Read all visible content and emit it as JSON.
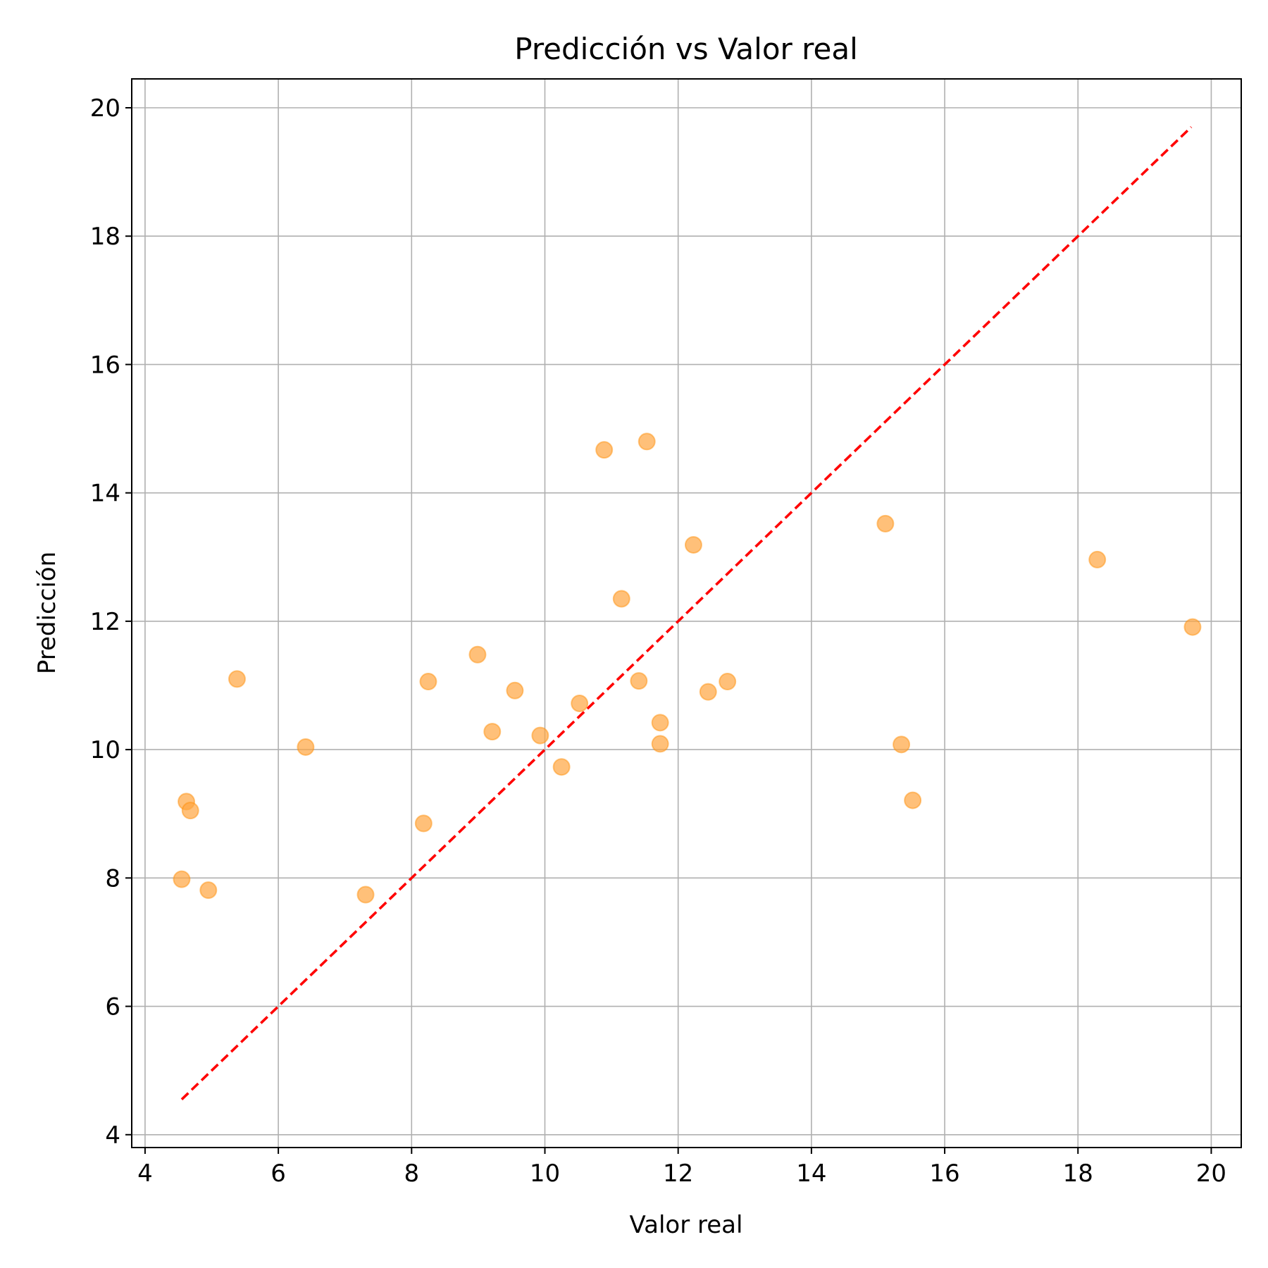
{
  "chart_data": {
    "type": "scatter",
    "title": "Predicción vs Valor real",
    "xlabel": "Valor real",
    "ylabel": "Predicción",
    "xlim": [
      3.8,
      20.45
    ],
    "ylim": [
      3.8,
      20.45
    ],
    "xticks": [
      "4",
      "6",
      "8",
      "10",
      "12",
      "14",
      "16",
      "18",
      "20"
    ],
    "yticks": [
      "4",
      "6",
      "8",
      "10",
      "12",
      "14",
      "16",
      "18",
      "20"
    ],
    "grid": true,
    "point_color": "#ff8c00",
    "reference_line": {
      "x": [
        4.55,
        19.7
      ],
      "y": [
        4.55,
        19.7
      ],
      "color": "#ff0000",
      "style": "dashed"
    },
    "points": [
      {
        "x": 4.55,
        "y": 7.98
      },
      {
        "x": 4.62,
        "y": 9.19
      },
      {
        "x": 4.68,
        "y": 9.05
      },
      {
        "x": 4.95,
        "y": 7.81
      },
      {
        "x": 5.38,
        "y": 11.1
      },
      {
        "x": 6.41,
        "y": 10.04
      },
      {
        "x": 7.31,
        "y": 7.74
      },
      {
        "x": 8.18,
        "y": 8.85
      },
      {
        "x": 8.25,
        "y": 11.06
      },
      {
        "x": 8.99,
        "y": 11.48
      },
      {
        "x": 9.21,
        "y": 10.28
      },
      {
        "x": 9.55,
        "y": 10.92
      },
      {
        "x": 9.93,
        "y": 10.22
      },
      {
        "x": 10.25,
        "y": 9.73
      },
      {
        "x": 10.52,
        "y": 10.72
      },
      {
        "x": 10.89,
        "y": 14.67
      },
      {
        "x": 11.15,
        "y": 12.35
      },
      {
        "x": 11.41,
        "y": 11.07
      },
      {
        "x": 11.53,
        "y": 14.8
      },
      {
        "x": 11.73,
        "y": 10.42
      },
      {
        "x": 11.73,
        "y": 10.09
      },
      {
        "x": 12.23,
        "y": 13.19
      },
      {
        "x": 12.45,
        "y": 10.9
      },
      {
        "x": 12.74,
        "y": 11.06
      },
      {
        "x": 15.11,
        "y": 13.52
      },
      {
        "x": 15.35,
        "y": 10.08
      },
      {
        "x": 15.52,
        "y": 9.21
      },
      {
        "x": 18.29,
        "y": 12.96
      },
      {
        "x": 19.72,
        "y": 11.91
      }
    ]
  }
}
